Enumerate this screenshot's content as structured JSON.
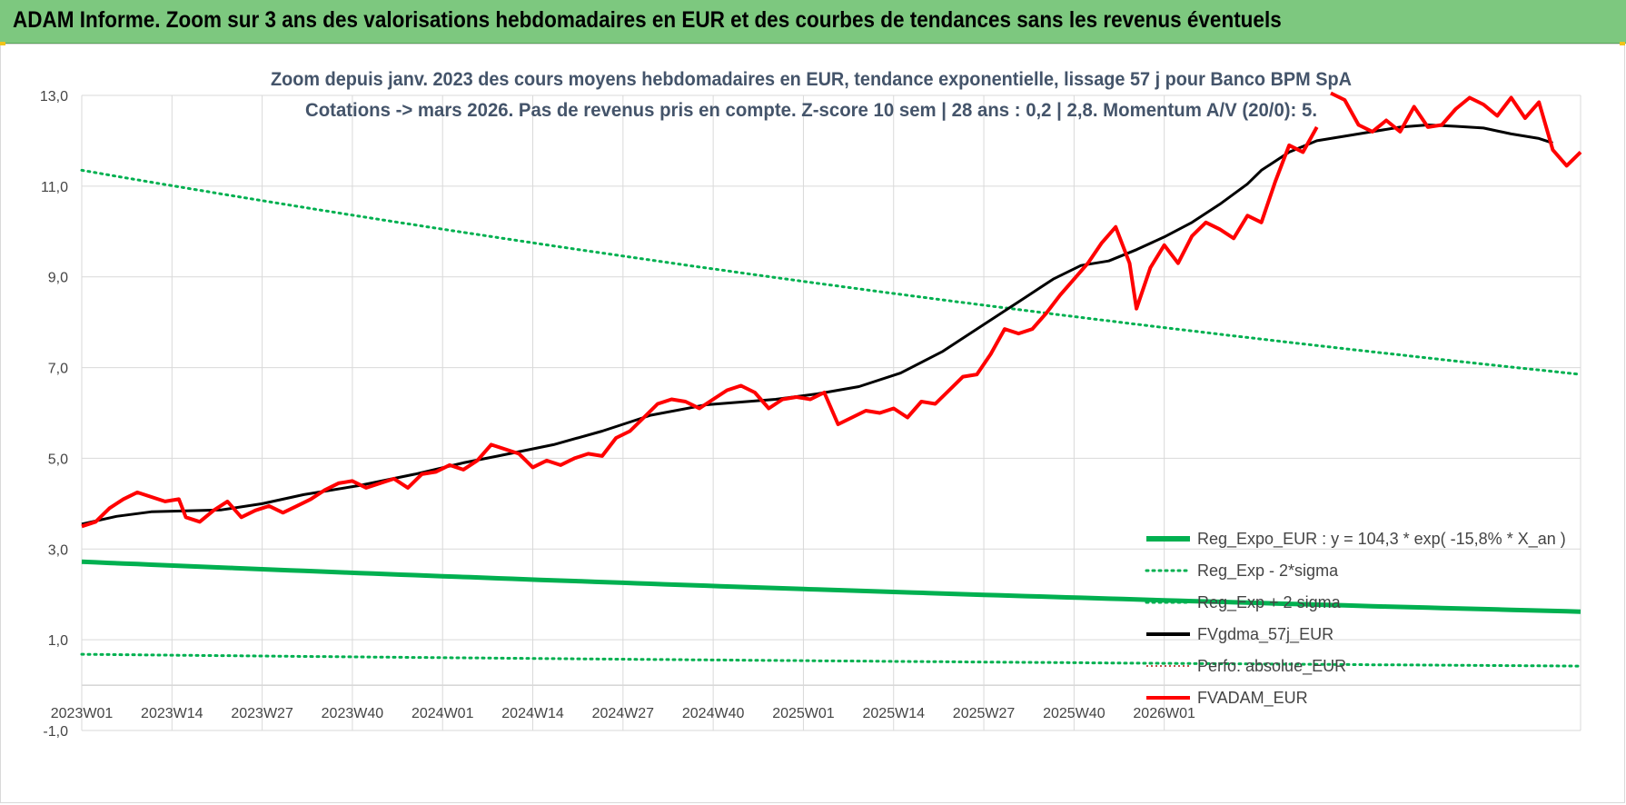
{
  "banner": {
    "title": "ADAM Informe. Zoom sur 3 ans des valorisations hebdomadaires en EUR et des courbes de tendances sans les revenus éventuels"
  },
  "colors": {
    "banner_bg": "#7dc87f",
    "reg_expo": "#00b050",
    "fv_adam": "#ff0000",
    "fvgdma": "#000000",
    "perfo": "#c0504d",
    "title_text": "#44546a",
    "grid": "#d9d9d9"
  },
  "chart_data": {
    "type": "line",
    "title_lines": [
      "Zoom depuis janv. 2023 des cours moyens hebdomadaires en EUR, tendance exponentielle, lissage 57 j pour Banco BPM SpA",
      "Cotations -> mars 2026. Pas de revenus pris en compte. Z-score 10 sem | 28 ans : 0,2 | 2,8. Momentum A/V (20/0): 5."
    ],
    "ylim": [
      -1,
      13
    ],
    "yticks": [
      "-1,0",
      "1,0",
      "3,0",
      "5,0",
      "7,0",
      "9,0",
      "11,0",
      "13,0"
    ],
    "ytick_values": [
      -1,
      1,
      3,
      5,
      7,
      9,
      11,
      13
    ],
    "grid": true,
    "legend_position": "bottom-right",
    "x_label_step": 13,
    "x_count": 170,
    "x_labels": [
      "2023W01",
      "2023W14",
      "2023W27",
      "2023W40",
      "2024W01",
      "2024W14",
      "2024W27",
      "2024W40",
      "2025W01",
      "2025W14",
      "2025W27",
      "2025W40",
      "2026W01"
    ],
    "legend": [
      {
        "name": "Reg_Expo_EUR : y = 104,3 * exp( -15,8% * X_an )",
        "style": "solid-thick",
        "color": "#00b050"
      },
      {
        "name": "Reg_Exp - 2*sigma",
        "style": "dotted",
        "color": "#00b050"
      },
      {
        "name": "Reg_Exp + 2 sigma",
        "style": "dotted",
        "color": "#00b050"
      },
      {
        "name": "FVgdma_57j_EUR",
        "style": "solid",
        "color": "#000000"
      },
      {
        "name": "Perfo. absolue_EUR",
        "style": "dotted-thin",
        "color": "#c0504d"
      },
      {
        "name": "FVADAM_EUR",
        "style": "solid",
        "color": "#ff0000"
      }
    ],
    "series": [
      {
        "name": "Reg_Expo_EUR : y = 104,3 * exp( -15,8% * X_an )",
        "kind": "reg",
        "start": 2.72,
        "end": 1.62
      },
      {
        "name": "Reg_Exp - 2*sigma",
        "kind": "reg_low",
        "start": 0.68,
        "end": 0.42
      },
      {
        "name": "Reg_Exp + 2 sigma",
        "kind": "reg_high",
        "start": 11.35,
        "end": 6.85
      },
      {
        "name": "FVgdma_57j_EUR",
        "kind": "smooth",
        "points": [
          [
            0,
            3.55
          ],
          [
            5,
            3.72
          ],
          [
            10,
            3.82
          ],
          [
            15,
            3.84
          ],
          [
            20,
            3.86
          ],
          [
            26,
            4.0
          ],
          [
            32,
            4.2
          ],
          [
            40,
            4.4
          ],
          [
            48,
            4.65
          ],
          [
            55,
            4.9
          ],
          [
            60,
            5.05
          ],
          [
            68,
            5.3
          ],
          [
            75,
            5.6
          ],
          [
            82,
            5.95
          ],
          [
            90,
            6.18
          ],
          [
            100,
            6.3
          ],
          [
            106,
            6.42
          ],
          [
            112,
            6.58
          ],
          [
            118,
            6.88
          ],
          [
            124,
            7.35
          ],
          [
            130,
            7.95
          ],
          [
            136,
            8.55
          ],
          [
            140,
            8.95
          ],
          [
            144,
            9.25
          ],
          [
            148,
            9.35
          ],
          [
            152,
            9.6
          ],
          [
            156,
            9.88
          ],
          [
            160,
            10.2
          ],
          [
            164,
            10.6
          ],
          [
            168,
            11.05
          ],
          [
            170,
            11.35
          ],
          [
            174,
            11.75
          ],
          [
            178,
            12.0
          ],
          [
            182,
            12.1
          ],
          [
            186,
            12.2
          ],
          [
            190,
            12.3
          ],
          [
            194,
            12.35
          ],
          [
            198,
            12.32
          ],
          [
            202,
            12.28
          ],
          [
            206,
            12.15
          ],
          [
            210,
            12.05
          ],
          [
            212,
            11.95
          ]
        ]
      },
      {
        "name": "Perfo. absolue_EUR",
        "kind": "hidden",
        "points": []
      },
      {
        "name": "FVADAM_EUR",
        "kind": "price",
        "points": [
          [
            0,
            3.5
          ],
          [
            2,
            3.6
          ],
          [
            4,
            3.9
          ],
          [
            6,
            4.1
          ],
          [
            8,
            4.25
          ],
          [
            10,
            4.15
          ],
          [
            12,
            4.05
          ],
          [
            14,
            4.1
          ],
          [
            15,
            3.7
          ],
          [
            17,
            3.6
          ],
          [
            19,
            3.85
          ],
          [
            21,
            4.05
          ],
          [
            23,
            3.7
          ],
          [
            25,
            3.85
          ],
          [
            27,
            3.95
          ],
          [
            29,
            3.8
          ],
          [
            31,
            3.95
          ],
          [
            33,
            4.1
          ],
          [
            35,
            4.3
          ],
          [
            37,
            4.45
          ],
          [
            39,
            4.5
          ],
          [
            41,
            4.35
          ],
          [
            43,
            4.45
          ],
          [
            45,
            4.55
          ],
          [
            47,
            4.35
          ],
          [
            49,
            4.65
          ],
          [
            51,
            4.7
          ],
          [
            53,
            4.85
          ],
          [
            55,
            4.75
          ],
          [
            57,
            4.95
          ],
          [
            59,
            5.3
          ],
          [
            61,
            5.2
          ],
          [
            63,
            5.1
          ],
          [
            65,
            4.8
          ],
          [
            67,
            4.95
          ],
          [
            69,
            4.85
          ],
          [
            71,
            5.0
          ],
          [
            73,
            5.1
          ],
          [
            75,
            5.05
          ],
          [
            77,
            5.45
          ],
          [
            79,
            5.6
          ],
          [
            81,
            5.9
          ],
          [
            83,
            6.2
          ],
          [
            85,
            6.3
          ],
          [
            87,
            6.25
          ],
          [
            89,
            6.1
          ],
          [
            91,
            6.3
          ],
          [
            93,
            6.5
          ],
          [
            95,
            6.6
          ],
          [
            97,
            6.45
          ],
          [
            99,
            6.1
          ],
          [
            101,
            6.3
          ],
          [
            103,
            6.35
          ],
          [
            105,
            6.3
          ],
          [
            107,
            6.45
          ],
          [
            109,
            5.75
          ],
          [
            111,
            5.9
          ],
          [
            113,
            6.05
          ],
          [
            115,
            6.0
          ],
          [
            117,
            6.1
          ],
          [
            119,
            5.9
          ],
          [
            121,
            6.25
          ],
          [
            123,
            6.2
          ],
          [
            125,
            6.5
          ],
          [
            127,
            6.8
          ],
          [
            129,
            6.85
          ],
          [
            131,
            7.3
          ],
          [
            133,
            7.85
          ],
          [
            135,
            7.75
          ],
          [
            137,
            7.85
          ],
          [
            139,
            8.2
          ],
          [
            141,
            8.6
          ],
          [
            143,
            8.95
          ],
          [
            145,
            9.3
          ],
          [
            147,
            9.75
          ],
          [
            149,
            10.1
          ],
          [
            151,
            9.3
          ],
          [
            152,
            8.3
          ],
          [
            154,
            9.2
          ],
          [
            156,
            9.7
          ],
          [
            158,
            9.3
          ],
          [
            160,
            9.9
          ],
          [
            162,
            10.2
          ],
          [
            164,
            10.05
          ],
          [
            166,
            9.85
          ],
          [
            168,
            10.35
          ],
          [
            170,
            10.2
          ],
          [
            172,
            11.1
          ],
          [
            174,
            11.9
          ],
          [
            176,
            11.75
          ],
          [
            178,
            12.3
          ]
        ]
      },
      {
        "name": "FVADAM_EUR (plotted above the plot top)",
        "kind": "price_top",
        "points": [
          [
            180,
            13.05
          ],
          [
            182,
            12.9
          ],
          [
            184,
            12.35
          ],
          [
            186,
            12.2
          ],
          [
            188,
            12.45
          ],
          [
            190,
            12.2
          ],
          [
            192,
            12.75
          ],
          [
            194,
            12.3
          ],
          [
            196,
            12.35
          ],
          [
            198,
            12.7
          ],
          [
            200,
            12.95
          ],
          [
            202,
            12.8
          ],
          [
            204,
            12.55
          ],
          [
            206,
            12.95
          ],
          [
            208,
            12.5
          ],
          [
            210,
            12.85
          ],
          [
            212,
            11.8
          ],
          [
            214,
            11.45
          ],
          [
            216,
            11.75
          ]
        ]
      }
    ]
  }
}
